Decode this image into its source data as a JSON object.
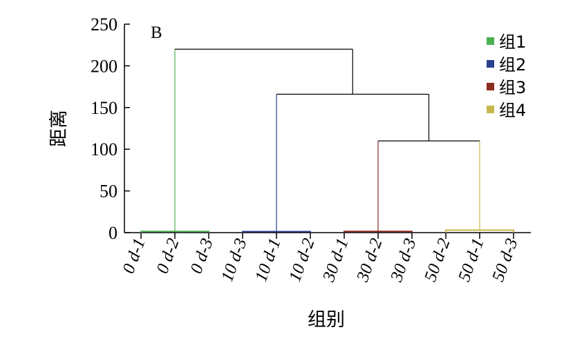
{
  "chart_data": {
    "type": "dendrogram",
    "panel_label": "B",
    "xlabel": "组别",
    "ylabel": "距离",
    "ylim": [
      0,
      250
    ],
    "yticks": [
      0,
      50,
      100,
      150,
      200,
      250
    ],
    "leaves": [
      "0 d-1",
      "0 d-2",
      "0 d-3",
      "10 d-3",
      "10 d-1",
      "10 d-2",
      "30 d-1",
      "30 d-2",
      "30 d-3",
      "50 d-2",
      "50 d-1",
      "50 d-3"
    ],
    "groups": [
      {
        "name": "组1",
        "color": "#4caf50",
        "leaves": [
          0,
          1,
          2
        ],
        "height": 1.5
      },
      {
        "name": "组2",
        "color": "#2b3f8f",
        "leaves": [
          3,
          4,
          5
        ],
        "height": 1.2
      },
      {
        "name": "组3",
        "color": "#8b2a1f",
        "leaves": [
          6,
          7,
          8
        ],
        "height": 1.5
      },
      {
        "name": "组4",
        "color": "#c8b84a",
        "leaves": [
          9,
          10,
          11
        ],
        "height": 3
      }
    ],
    "merges": [
      {
        "left": "组3",
        "right": "组4",
        "height": 110
      },
      {
        "left": "组2",
        "right": "组3+组4",
        "height": 166
      },
      {
        "left": "组1",
        "right": "组2+组3+组4",
        "height": 220
      }
    ],
    "legend_position": "top-right"
  }
}
